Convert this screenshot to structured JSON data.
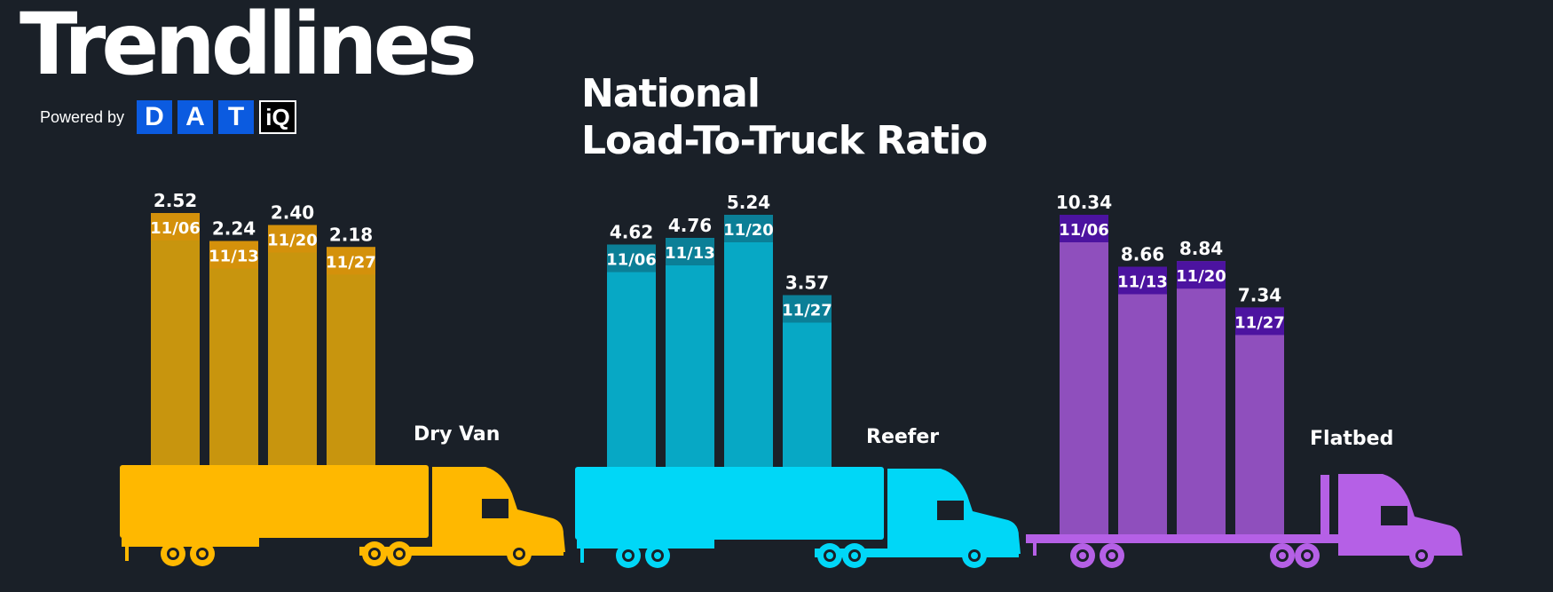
{
  "brand": {
    "title": "Trendlines",
    "powered_by": "Powered by",
    "logo_letters": [
      "D",
      "A",
      "T"
    ],
    "logo_iq": "iQ"
  },
  "chart_data": {
    "type": "bar",
    "title_line1": "National",
    "title_line2": "Load-To-Truck Ratio",
    "groups": [
      {
        "name": "Dry Van",
        "color": "#ffb800",
        "bar_color": "#c8950e",
        "label_color": "#d4910b",
        "categories": [
          "11/06",
          "11/13",
          "11/20",
          "11/27"
        ],
        "values": [
          2.52,
          2.24,
          2.4,
          2.18
        ],
        "value_labels": [
          "2.52",
          "2.24",
          "2.40",
          "2.18"
        ]
      },
      {
        "name": "Reefer",
        "color": "#00d7f7",
        "bar_color": "#07a8c5",
        "label_color": "#0b7f97",
        "categories": [
          "11/06",
          "11/13",
          "11/20",
          "11/27"
        ],
        "values": [
          4.62,
          4.76,
          5.24,
          3.57
        ],
        "value_labels": [
          "4.62",
          "4.76",
          "5.24",
          "3.57"
        ]
      },
      {
        "name": "Flatbed",
        "color": "#b560e6",
        "bar_color": "#8f4fbd",
        "label_color": "#4c13a0",
        "categories": [
          "11/06",
          "11/13",
          "11/20",
          "11/27"
        ],
        "values": [
          10.34,
          8.66,
          8.84,
          7.34
        ],
        "value_labels": [
          "10.34",
          "8.66",
          "8.84",
          "7.34"
        ]
      }
    ]
  }
}
